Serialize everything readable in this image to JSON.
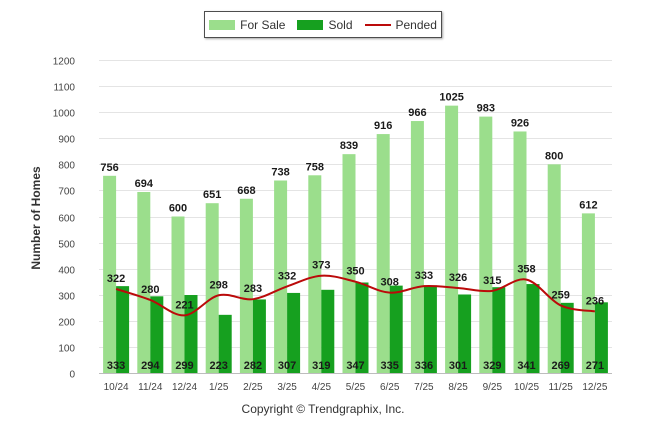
{
  "chart_data": {
    "type": "bar",
    "title": "",
    "xlabel": "",
    "ylabel": "Number of Homes",
    "ylim": [
      0,
      1200
    ],
    "ytick_step": 100,
    "grid": true,
    "categories": [
      "10/24",
      "11/24",
      "12/24",
      "1/25",
      "2/25",
      "3/25",
      "4/25",
      "5/25",
      "6/25",
      "7/25",
      "8/25",
      "9/25",
      "10/25",
      "11/25",
      "12/25"
    ],
    "series": [
      {
        "name": "For Sale",
        "kind": "bar",
        "color": "#9bde8c",
        "values": [
          756,
          694,
          600,
          651,
          668,
          738,
          758,
          839,
          916,
          966,
          1025,
          983,
          926,
          800,
          612
        ]
      },
      {
        "name": "Sold",
        "kind": "bar",
        "color": "#16a01f",
        "values": [
          333,
          294,
          299,
          223,
          282,
          307,
          319,
          347,
          335,
          336,
          301,
          329,
          341,
          269,
          271
        ]
      },
      {
        "name": "Pended",
        "kind": "line",
        "color": "#bb0a0a",
        "values": [
          322,
          280,
          221,
          298,
          283,
          332,
          373,
          350,
          308,
          333,
          326,
          315,
          358,
          259,
          236
        ]
      }
    ],
    "legend_position": "top-center"
  },
  "copyright": "Copyright © Trendgraphix, Inc."
}
